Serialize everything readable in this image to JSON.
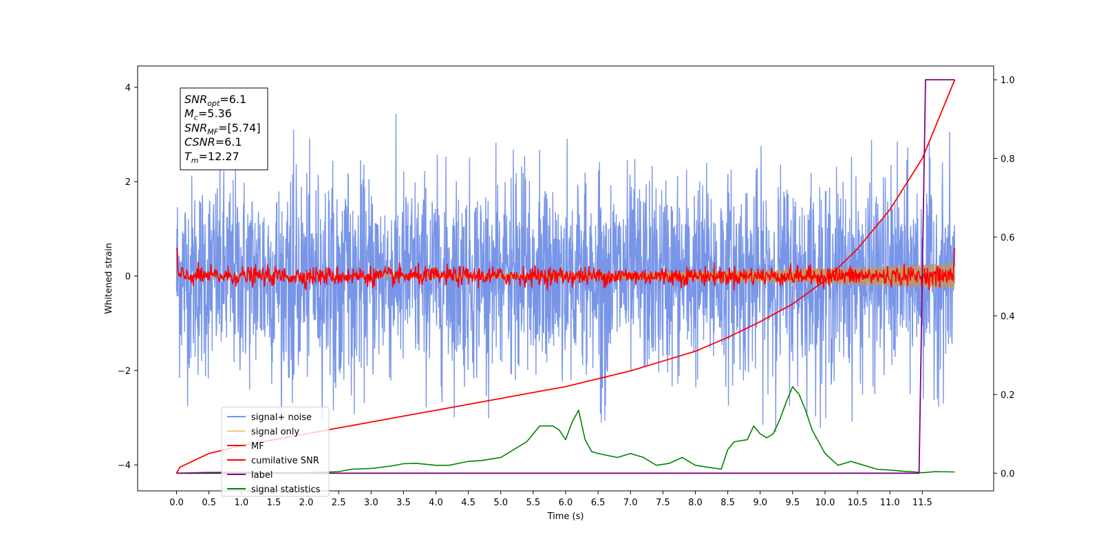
{
  "chart_data": {
    "type": "line",
    "xlabel": "Time (s)",
    "ylabel": "Whitened strain",
    "xlim": [
      -0.6,
      12.6
    ],
    "ylim": [
      -4.55,
      4.45
    ],
    "ylim_right": [
      -0.045,
      1.035
    ],
    "x_ticks": [
      0.0,
      0.5,
      1.0,
      1.5,
      2.0,
      2.5,
      3.0,
      3.5,
      4.0,
      4.5,
      5.0,
      5.5,
      6.0,
      6.5,
      7.0,
      7.5,
      8.0,
      8.5,
      9.0,
      9.5,
      10.0,
      10.5,
      11.0,
      11.5
    ],
    "x_tick_labels": [
      "0.0",
      "0.5",
      "1.0",
      "1.5",
      "2.0",
      "2.5",
      "3.0",
      "3.5",
      "4.0",
      "4.5",
      "5.0",
      "5.5",
      "6.0",
      "6.5",
      "7.0",
      "7.5",
      "8.0",
      "8.5",
      "9.0",
      "9.5",
      "10.0",
      "10.5",
      "11.0",
      "11.5"
    ],
    "y_ticks": [
      -4,
      -2,
      0,
      2,
      4
    ],
    "y_tick_labels": [
      "−4",
      "−2",
      "0",
      "2",
      "4"
    ],
    "y_ticks_right": [
      0.0,
      0.2,
      0.4,
      0.6,
      0.8,
      1.0
    ],
    "y_tick_labels_right": [
      "0.0",
      "0.2",
      "0.4",
      "0.6",
      "0.8",
      "1.0"
    ],
    "legend_position": "lower-left",
    "info_box": [
      {
        "main": "SNR",
        "sub": "opt",
        "value": "=6.1"
      },
      {
        "main": "M",
        "sub": "c",
        "value": "=5.36"
      },
      {
        "main": "SNR",
        "sub": "MF",
        "value": "=[5.74]"
      },
      {
        "main": "CSNR",
        "sub": "",
        "value": "=6.1"
      },
      {
        "main": "T",
        "sub": "m",
        "value": "=12.27"
      }
    ],
    "series": [
      {
        "name": "signal+ noise",
        "color": "#7895e8",
        "axis": "left",
        "kind": "noise",
        "x_range": [
          0.0,
          12.0
        ],
        "amplitude_range": [
          -3.3,
          3.6
        ]
      },
      {
        "name": "signal only",
        "color": "#f5c97a",
        "axis": "left",
        "kind": "chirp",
        "x_range": [
          0.0,
          12.0
        ],
        "amplitude_range": [
          -0.25,
          0.3
        ]
      },
      {
        "name": "MF",
        "color": "#ff0000",
        "axis": "left",
        "kind": "noise",
        "x_range": [
          0.0,
          12.0
        ],
        "amplitude_range": [
          -0.3,
          0.6
        ]
      },
      {
        "name": "cumilative SNR",
        "color": "#ff0000",
        "axis": "right",
        "kind": "curve",
        "x": [
          0.0,
          0.05,
          0.5,
          1.0,
          1.5,
          2.0,
          2.5,
          3.0,
          3.5,
          4.0,
          4.5,
          5.0,
          5.5,
          6.0,
          6.5,
          7.0,
          7.5,
          8.0,
          8.5,
          9.0,
          9.5,
          10.0,
          10.5,
          11.0,
          11.5,
          12.0
        ],
        "y": [
          0.0,
          0.015,
          0.05,
          0.07,
          0.085,
          0.1,
          0.115,
          0.13,
          0.145,
          0.16,
          0.175,
          0.19,
          0.205,
          0.22,
          0.24,
          0.26,
          0.285,
          0.31,
          0.345,
          0.385,
          0.43,
          0.49,
          0.57,
          0.67,
          0.8,
          1.0
        ]
      },
      {
        "name": "label",
        "color": "#800080",
        "axis": "right",
        "kind": "step",
        "x": [
          0.0,
          11.45,
          11.55,
          11.55,
          12.0
        ],
        "y": [
          0.0,
          0.0,
          1.0,
          1.0,
          1.0
        ]
      },
      {
        "name": "signal statistics",
        "color": "#008000",
        "axis": "right",
        "kind": "curve",
        "x": [
          0.0,
          0.5,
          1.0,
          1.5,
          2.0,
          2.5,
          2.7,
          3.0,
          3.3,
          3.5,
          3.7,
          4.0,
          4.2,
          4.5,
          4.7,
          5.0,
          5.2,
          5.4,
          5.6,
          5.8,
          5.9,
          6.0,
          6.1,
          6.2,
          6.3,
          6.4,
          6.5,
          6.8,
          7.0,
          7.2,
          7.4,
          7.6,
          7.8,
          8.0,
          8.2,
          8.4,
          8.5,
          8.6,
          8.8,
          8.9,
          9.0,
          9.1,
          9.2,
          9.3,
          9.4,
          9.5,
          9.6,
          9.7,
          9.8,
          10.0,
          10.2,
          10.4,
          10.6,
          10.8,
          11.0,
          11.2,
          11.4,
          11.5,
          11.7,
          12.0
        ],
        "y": [
          0.0,
          0.002,
          0.002,
          0.001,
          0.001,
          0.004,
          0.01,
          0.012,
          0.018,
          0.024,
          0.025,
          0.02,
          0.02,
          0.03,
          0.032,
          0.04,
          0.06,
          0.08,
          0.12,
          0.12,
          0.11,
          0.085,
          0.13,
          0.16,
          0.085,
          0.055,
          0.05,
          0.04,
          0.05,
          0.04,
          0.02,
          0.025,
          0.04,
          0.02,
          0.015,
          0.01,
          0.06,
          0.08,
          0.085,
          0.12,
          0.1,
          0.09,
          0.1,
          0.135,
          0.18,
          0.22,
          0.2,
          0.16,
          0.11,
          0.05,
          0.02,
          0.03,
          0.02,
          0.01,
          0.008,
          0.005,
          0.003,
          0.001,
          0.004,
          0.003
        ]
      }
    ]
  }
}
